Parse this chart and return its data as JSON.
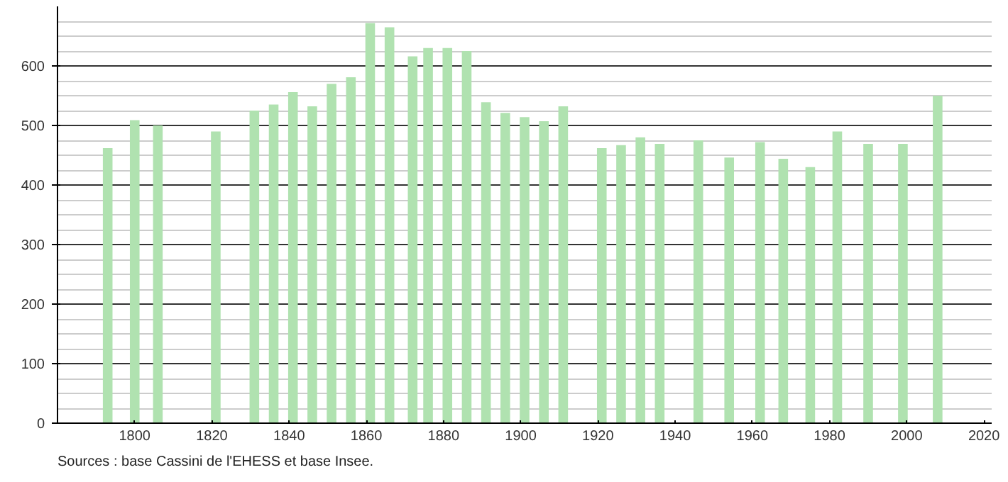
{
  "chart_data": {
    "type": "bar",
    "x": [
      1793,
      1800,
      1806,
      1821,
      1831,
      1836,
      1841,
      1846,
      1851,
      1856,
      1861,
      1866,
      1872,
      1876,
      1881,
      1886,
      1891,
      1896,
      1901,
      1906,
      1911,
      1921,
      1926,
      1931,
      1936,
      1946,
      1954,
      1962,
      1968,
      1975,
      1982,
      1990,
      1999,
      2008
    ],
    "values": [
      462,
      509,
      500,
      490,
      525,
      535,
      556,
      532,
      570,
      581,
      672,
      665,
      616,
      630,
      630,
      625,
      539,
      521,
      514,
      507,
      532,
      462,
      467,
      480,
      469,
      475,
      446,
      472,
      444,
      430,
      490,
      469,
      469,
      550
    ],
    "color": "#b0e2b0",
    "xlim": [
      1780,
      2022
    ],
    "xticks": [
      1800,
      1820,
      1840,
      1860,
      1880,
      1900,
      1920,
      1940,
      1960,
      1980,
      2000,
      2020
    ],
    "ylim": [
      0,
      700
    ],
    "yticks": [
      0,
      100,
      200,
      300,
      400,
      500,
      600
    ],
    "grid": "y",
    "annotations": [
      "Sources : base Cassini de l'EHESS et base Insee."
    ]
  }
}
